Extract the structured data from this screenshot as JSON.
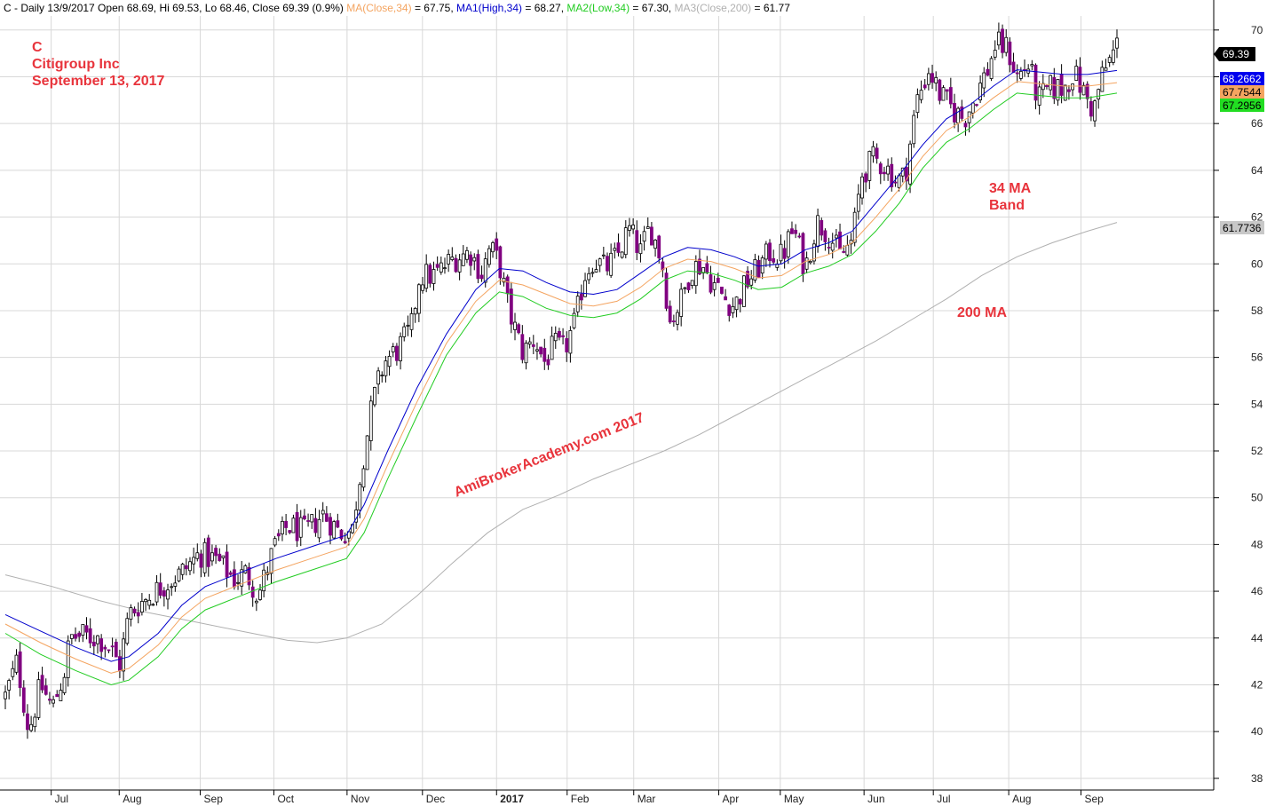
{
  "header": {
    "prefix": "C - Daily 13/9/2017 Open 68.69, Hi 69.53, Lo 68.46, Close 69.39 (0.9%)",
    "ma": {
      "label": "MA(Close,34)",
      "value": " = 67.75, ",
      "color": "#f4a460"
    },
    "ma1": {
      "label": "MA1(High,34)",
      "value": " = 68.27, ",
      "color": "#0000cc"
    },
    "ma2": {
      "label": "MA2(Low,34)",
      "value": " = 67.30, ",
      "color": "#22cc22"
    },
    "ma3": {
      "label": "MA3(Close,200)",
      "value": " = 61.77",
      "color": "#b0b0b0"
    }
  },
  "titles": {
    "ticker": "C",
    "company": "Citigroup Inc",
    "date": "September 13, 2017"
  },
  "annotations": {
    "band_line1": "34 MA",
    "band_line2": "Band",
    "ma200": "200 MA",
    "watermark": "AmiBrokerAcademy.com  2017"
  },
  "tags": {
    "close": "69.39",
    "ma1": "68.2662",
    "ma": "67.7544",
    "ma2": "67.2956",
    "ma3": "61.7736"
  },
  "colors": {
    "up_candle": "#ffffff",
    "down_candle": "#800080",
    "candle_outline": "#000000",
    "ma_close": "#f4a460",
    "ma_high": "#0000cc",
    "ma_low": "#22cc22",
    "ma_200": "#b0b0b0",
    "annotation": "#e8343c",
    "grid": "#d8d8d8"
  },
  "chart_data": {
    "type": "candlestick",
    "ylim": [
      37.5,
      70.6
    ],
    "yticks": [
      38,
      40,
      42,
      44,
      46,
      48,
      50,
      52,
      54,
      56,
      58,
      60,
      62,
      64,
      66,
      68,
      70
    ],
    "x_labels": [
      {
        "label": "Jul",
        "t": 0.039
      },
      {
        "label": "Aug",
        "t": 0.0968
      },
      {
        "label": "Sep",
        "t": 0.1657
      },
      {
        "label": "Oct",
        "t": 0.2283
      },
      {
        "label": "Nov",
        "t": 0.2905
      },
      {
        "label": "Dec",
        "t": 0.3546
      },
      {
        "label": "2017",
        "t": 0.4176,
        "bold": true
      },
      {
        "label": "Feb",
        "t": 0.4776
      },
      {
        "label": "Mar",
        "t": 0.5342
      },
      {
        "label": "Apr",
        "t": 0.6065
      },
      {
        "label": "May",
        "t": 0.6588
      },
      {
        "label": "Jun",
        "t": 0.73
      },
      {
        "label": "Jul",
        "t": 0.7889
      },
      {
        "label": "Aug",
        "t": 0.853
      },
      {
        "label": "Sep",
        "t": 0.9144
      }
    ],
    "price_points": [
      [
        0.0,
        41.5
      ],
      [
        0.01,
        43.0
      ],
      [
        0.02,
        40.0
      ],
      [
        0.03,
        42.0
      ],
      [
        0.04,
        41.0
      ],
      [
        0.05,
        42.5
      ],
      [
        0.055,
        44.0
      ],
      [
        0.065,
        44.1
      ],
      [
        0.08,
        44.0
      ],
      [
        0.09,
        43.5
      ],
      [
        0.097,
        42.8
      ],
      [
        0.105,
        45.0
      ],
      [
        0.115,
        45.5
      ],
      [
        0.13,
        46.1
      ],
      [
        0.15,
        46.8
      ],
      [
        0.165,
        47.6
      ],
      [
        0.18,
        47.3
      ],
      [
        0.195,
        46.5
      ],
      [
        0.205,
        46.8
      ],
      [
        0.215,
        45.8
      ],
      [
        0.228,
        47.8
      ],
      [
        0.24,
        48.8
      ],
      [
        0.255,
        48.5
      ],
      [
        0.27,
        49.3
      ],
      [
        0.285,
        48.5
      ],
      [
        0.295,
        48.6
      ],
      [
        0.3,
        50.5
      ],
      [
        0.312,
        54.0
      ],
      [
        0.322,
        55.8
      ],
      [
        0.333,
        56.3
      ],
      [
        0.345,
        57.2
      ],
      [
        0.352,
        59.5
      ],
      [
        0.365,
        59.5
      ],
      [
        0.38,
        60.2
      ],
      [
        0.395,
        60.5
      ],
      [
        0.405,
        59.6
      ],
      [
        0.412,
        60.7
      ],
      [
        0.42,
        60.0
      ],
      [
        0.428,
        58.0
      ],
      [
        0.44,
        56.2
      ],
      [
        0.45,
        56.8
      ],
      [
        0.458,
        55.8
      ],
      [
        0.467,
        56.5
      ],
      [
        0.475,
        56.3
      ],
      [
        0.485,
        57.6
      ],
      [
        0.492,
        59.5
      ],
      [
        0.5,
        60.2
      ],
      [
        0.51,
        59.8
      ],
      [
        0.52,
        60.3
      ],
      [
        0.53,
        61.5
      ],
      [
        0.54,
        60.5
      ],
      [
        0.548,
        61.6
      ],
      [
        0.558,
        60.2
      ],
      [
        0.565,
        57.5
      ],
      [
        0.575,
        58.5
      ],
      [
        0.583,
        59.8
      ],
      [
        0.592,
        60.0
      ],
      [
        0.6,
        59.3
      ],
      [
        0.612,
        58.5
      ],
      [
        0.62,
        58.2
      ],
      [
        0.63,
        59.2
      ],
      [
        0.64,
        59.8
      ],
      [
        0.65,
        60.5
      ],
      [
        0.66,
        60.3
      ],
      [
        0.67,
        61.5
      ],
      [
        0.68,
        59.8
      ],
      [
        0.69,
        61.8
      ],
      [
        0.7,
        61.3
      ],
      [
        0.71,
        60.3
      ],
      [
        0.72,
        61.0
      ],
      [
        0.728,
        63.8
      ],
      [
        0.738,
        64.5
      ],
      [
        0.748,
        64.2
      ],
      [
        0.758,
        63.5
      ],
      [
        0.765,
        63.8
      ],
      [
        0.775,
        67.0
      ],
      [
        0.785,
        68.3
      ],
      [
        0.795,
        67.2
      ],
      [
        0.805,
        66.6
      ],
      [
        0.815,
        66.2
      ],
      [
        0.825,
        67.2
      ],
      [
        0.835,
        68.3
      ],
      [
        0.842,
        69.4
      ],
      [
        0.852,
        69.2
      ],
      [
        0.86,
        68.0
      ],
      [
        0.87,
        68.5
      ],
      [
        0.878,
        67.0
      ],
      [
        0.888,
        67.5
      ],
      [
        0.9,
        67.5
      ],
      [
        0.908,
        68.2
      ],
      [
        0.918,
        67.2
      ],
      [
        0.925,
        66.5
      ],
      [
        0.932,
        68.0
      ],
      [
        0.94,
        68.8
      ],
      [
        0.945,
        69.39
      ]
    ],
    "ma_high": [
      [
        0.0,
        45.0
      ],
      [
        0.03,
        44.3
      ],
      [
        0.06,
        43.6
      ],
      [
        0.09,
        43.0
      ],
      [
        0.105,
        43.2
      ],
      [
        0.13,
        44.2
      ],
      [
        0.15,
        45.4
      ],
      [
        0.17,
        46.2
      ],
      [
        0.2,
        46.8
      ],
      [
        0.23,
        47.4
      ],
      [
        0.26,
        47.9
      ],
      [
        0.29,
        48.4
      ],
      [
        0.305,
        49.7
      ],
      [
        0.325,
        52.0
      ],
      [
        0.35,
        54.7
      ],
      [
        0.375,
        57.0
      ],
      [
        0.4,
        58.9
      ],
      [
        0.42,
        59.8
      ],
      [
        0.44,
        59.7
      ],
      [
        0.46,
        59.2
      ],
      [
        0.48,
        58.8
      ],
      [
        0.5,
        58.7
      ],
      [
        0.52,
        58.9
      ],
      [
        0.54,
        59.6
      ],
      [
        0.56,
        60.3
      ],
      [
        0.58,
        60.7
      ],
      [
        0.6,
        60.6
      ],
      [
        0.62,
        60.3
      ],
      [
        0.64,
        59.9
      ],
      [
        0.66,
        60.0
      ],
      [
        0.68,
        60.6
      ],
      [
        0.7,
        60.9
      ],
      [
        0.72,
        61.4
      ],
      [
        0.74,
        62.6
      ],
      [
        0.76,
        63.8
      ],
      [
        0.78,
        65.1
      ],
      [
        0.8,
        66.2
      ],
      [
        0.82,
        66.8
      ],
      [
        0.84,
        67.6
      ],
      [
        0.86,
        68.3
      ],
      [
        0.88,
        68.2
      ],
      [
        0.9,
        68.1
      ],
      [
        0.92,
        68.1
      ],
      [
        0.945,
        68.27
      ]
    ],
    "ma_close": [
      [
        0.0,
        44.6
      ],
      [
        0.03,
        43.8
      ],
      [
        0.06,
        43.1
      ],
      [
        0.09,
        42.5
      ],
      [
        0.105,
        42.7
      ],
      [
        0.13,
        43.7
      ],
      [
        0.15,
        44.9
      ],
      [
        0.17,
        45.7
      ],
      [
        0.2,
        46.3
      ],
      [
        0.23,
        46.9
      ],
      [
        0.26,
        47.4
      ],
      [
        0.29,
        47.9
      ],
      [
        0.305,
        49.1
      ],
      [
        0.325,
        51.4
      ],
      [
        0.35,
        54.1
      ],
      [
        0.375,
        56.6
      ],
      [
        0.4,
        58.4
      ],
      [
        0.42,
        59.3
      ],
      [
        0.44,
        59.1
      ],
      [
        0.46,
        58.7
      ],
      [
        0.48,
        58.3
      ],
      [
        0.5,
        58.2
      ],
      [
        0.52,
        58.4
      ],
      [
        0.54,
        59.0
      ],
      [
        0.56,
        59.8
      ],
      [
        0.58,
        60.2
      ],
      [
        0.6,
        60.1
      ],
      [
        0.62,
        59.8
      ],
      [
        0.64,
        59.4
      ],
      [
        0.66,
        59.5
      ],
      [
        0.68,
        60.1
      ],
      [
        0.7,
        60.4
      ],
      [
        0.72,
        60.9
      ],
      [
        0.74,
        62.0
      ],
      [
        0.76,
        63.2
      ],
      [
        0.78,
        64.6
      ],
      [
        0.8,
        65.7
      ],
      [
        0.82,
        66.3
      ],
      [
        0.84,
        67.1
      ],
      [
        0.86,
        67.8
      ],
      [
        0.88,
        67.7
      ],
      [
        0.9,
        67.6
      ],
      [
        0.92,
        67.6
      ],
      [
        0.945,
        67.75
      ]
    ],
    "ma_low": [
      [
        0.0,
        44.2
      ],
      [
        0.03,
        43.3
      ],
      [
        0.06,
        42.6
      ],
      [
        0.09,
        42.0
      ],
      [
        0.105,
        42.2
      ],
      [
        0.13,
        43.2
      ],
      [
        0.15,
        44.4
      ],
      [
        0.17,
        45.2
      ],
      [
        0.2,
        45.8
      ],
      [
        0.23,
        46.4
      ],
      [
        0.26,
        46.9
      ],
      [
        0.29,
        47.4
      ],
      [
        0.305,
        48.5
      ],
      [
        0.325,
        50.8
      ],
      [
        0.35,
        53.5
      ],
      [
        0.375,
        56.1
      ],
      [
        0.4,
        57.9
      ],
      [
        0.42,
        58.8
      ],
      [
        0.44,
        58.6
      ],
      [
        0.46,
        58.1
      ],
      [
        0.48,
        57.8
      ],
      [
        0.5,
        57.7
      ],
      [
        0.52,
        57.9
      ],
      [
        0.54,
        58.5
      ],
      [
        0.56,
        59.3
      ],
      [
        0.58,
        59.7
      ],
      [
        0.6,
        59.6
      ],
      [
        0.62,
        59.3
      ],
      [
        0.64,
        58.9
      ],
      [
        0.66,
        59.0
      ],
      [
        0.68,
        59.6
      ],
      [
        0.7,
        59.9
      ],
      [
        0.72,
        60.4
      ],
      [
        0.74,
        61.4
      ],
      [
        0.76,
        62.6
      ],
      [
        0.78,
        64.1
      ],
      [
        0.8,
        65.2
      ],
      [
        0.82,
        65.8
      ],
      [
        0.84,
        66.6
      ],
      [
        0.86,
        67.3
      ],
      [
        0.88,
        67.2
      ],
      [
        0.9,
        67.1
      ],
      [
        0.92,
        67.1
      ],
      [
        0.945,
        67.3
      ]
    ],
    "ma_200": [
      [
        0.0,
        46.7
      ],
      [
        0.04,
        46.2
      ],
      [
        0.08,
        45.6
      ],
      [
        0.12,
        45.1
      ],
      [
        0.16,
        44.7
      ],
      [
        0.2,
        44.3
      ],
      [
        0.24,
        43.9
      ],
      [
        0.265,
        43.8
      ],
      [
        0.29,
        44.0
      ],
      [
        0.32,
        44.6
      ],
      [
        0.35,
        45.8
      ],
      [
        0.38,
        47.2
      ],
      [
        0.41,
        48.5
      ],
      [
        0.44,
        49.5
      ],
      [
        0.47,
        50.1
      ],
      [
        0.5,
        50.8
      ],
      [
        0.53,
        51.4
      ],
      [
        0.56,
        52.0
      ],
      [
        0.59,
        52.7
      ],
      [
        0.62,
        53.5
      ],
      [
        0.65,
        54.3
      ],
      [
        0.68,
        55.1
      ],
      [
        0.71,
        55.9
      ],
      [
        0.74,
        56.7
      ],
      [
        0.77,
        57.6
      ],
      [
        0.8,
        58.5
      ],
      [
        0.83,
        59.5
      ],
      [
        0.86,
        60.3
      ],
      [
        0.89,
        60.9
      ],
      [
        0.92,
        61.4
      ],
      [
        0.945,
        61.77
      ]
    ]
  }
}
